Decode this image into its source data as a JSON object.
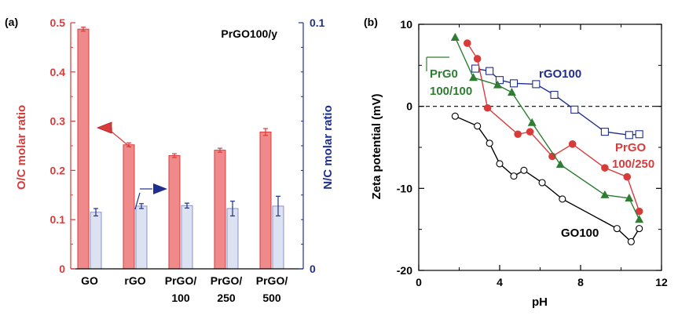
{
  "colors": {
    "red": "#d93b3b",
    "navy": "#1f2f8f",
    "green": "#2e7d32",
    "black": "#000000",
    "bar_red_fill": "#f08a8a",
    "bar_blue_fill": "#dde2f3"
  },
  "chart_data": [
    {
      "panel": "(a)",
      "type": "bar",
      "inset_label": "PrGO100/y",
      "ylabel_left": "O/C molar ratio",
      "ylabel_right": "N/C molar ratio",
      "left_ticks": [
        "0",
        "0.1",
        "0.2",
        "0.3",
        "0.4",
        "0.5"
      ],
      "right_ticks": [
        "0",
        "0.1"
      ],
      "ylim_left": [
        0,
        0.5
      ],
      "ylim_right": [
        0,
        0.1
      ],
      "categories": [
        {
          "line1": "GO",
          "line2": ""
        },
        {
          "line1": "rGO",
          "line2": ""
        },
        {
          "line1": "PrGO/",
          "line2": "100"
        },
        {
          "line1": "PrGO/",
          "line2": "250"
        },
        {
          "line1": "PrGO/",
          "line2": "500"
        }
      ],
      "series": [
        {
          "axis": "left",
          "values": [
            0.487,
            0.252,
            0.23,
            0.241,
            0.278
          ],
          "errors": [
            0.004,
            0.004,
            0.004,
            0.004,
            0.007
          ]
        },
        {
          "axis": "right",
          "values": [
            0.023,
            0.0255,
            0.0257,
            0.0245,
            0.0255
          ],
          "errors": [
            0.0015,
            0.001,
            0.001,
            0.003,
            0.004
          ]
        }
      ],
      "grid": false
    },
    {
      "panel": "(b)",
      "type": "line",
      "xlabel": "pH",
      "ylabel": "Zeta potential (mV)",
      "xlim": [
        0,
        12
      ],
      "ylim": [
        -20,
        10
      ],
      "x_ticks": [
        "0",
        "4",
        "8",
        "12"
      ],
      "y_ticks": [
        "-20",
        "-10",
        "0",
        "10"
      ],
      "zero_line": "dashed",
      "grid": false,
      "series": [
        {
          "label": "GO100",
          "marker": "open-circle",
          "color": "black",
          "x": [
            1.8,
            2.9,
            3.5,
            4.0,
            4.7,
            5.2,
            6.1,
            7.1,
            9.8,
            10.5,
            10.9
          ],
          "y": [
            -1.2,
            -2.4,
            -4.5,
            -7.0,
            -8.5,
            -7.8,
            -9.3,
            -11.3,
            -14.9,
            -16.5,
            -14.9
          ]
        },
        {
          "label": "rGO100",
          "marker": "open-square",
          "color": "navy",
          "x": [
            2.8,
            3.5,
            4.0,
            4.7,
            5.8,
            6.7,
            7.7,
            9.2,
            10.4,
            10.9
          ],
          "y": [
            4.6,
            4.3,
            3.2,
            2.8,
            2.7,
            1.4,
            -0.4,
            -3.1,
            -3.5,
            -3.4
          ]
        },
        {
          "label": "PrGO 100/250",
          "marker": "filled-circle",
          "color": "red",
          "x": [
            2.4,
            2.9,
            3.4,
            4.9,
            5.5,
            6.6,
            7.6,
            9.2,
            10.3,
            10.9
          ],
          "y": [
            7.7,
            5.8,
            -0.2,
            -3.4,
            -3.1,
            -6.1,
            -4.6,
            -7.5,
            -8.6,
            -12.8
          ]
        },
        {
          "label": "PrG0 100/100",
          "marker": "filled-triangle",
          "color": "green",
          "x": [
            1.8,
            2.7,
            3.9,
            4.6,
            5.6,
            7.0,
            9.2,
            10.4,
            10.9
          ],
          "y": [
            8.4,
            3.5,
            2.6,
            1.7,
            -2.0,
            -7.1,
            -10.8,
            -11.2,
            -13.8
          ]
        }
      ],
      "annotations": [
        {
          "text": "rGO100",
          "color": "navy"
        },
        {
          "text": "PrGO",
          "color": "red"
        },
        {
          "text": "100/250",
          "color": "red"
        },
        {
          "text": "PrG0",
          "color": "green"
        },
        {
          "text": "100/100",
          "color": "green"
        },
        {
          "text": "GO100",
          "color": "black"
        }
      ]
    }
  ]
}
